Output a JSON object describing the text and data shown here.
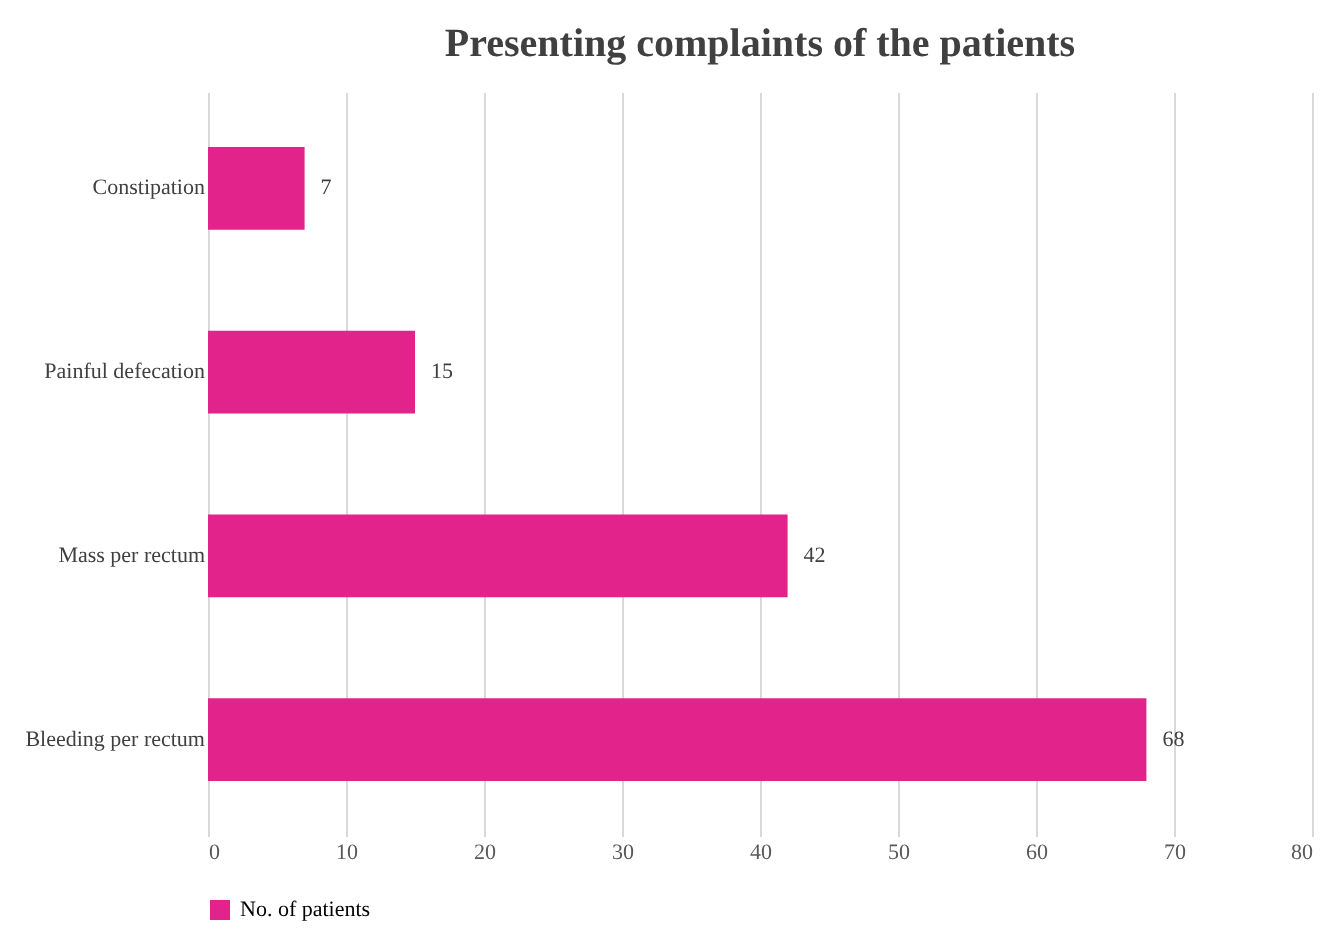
{
  "chart_data": {
    "type": "bar",
    "orientation": "horizontal",
    "title": "Presenting complaints of the patients",
    "categories": [
      "Constipation",
      "Painful defecation",
      "Mass per rectum",
      "Bleeding per rectum"
    ],
    "series": [
      {
        "name": "No. of patients",
        "color": "#e2238b",
        "values": [
          7,
          15,
          42,
          68
        ]
      }
    ],
    "xlim": [
      0,
      80
    ],
    "xticks": [
      0,
      10,
      20,
      30,
      40,
      50,
      60,
      70,
      80
    ],
    "grid": "x",
    "legend": "bottom",
    "data_labels": true
  }
}
